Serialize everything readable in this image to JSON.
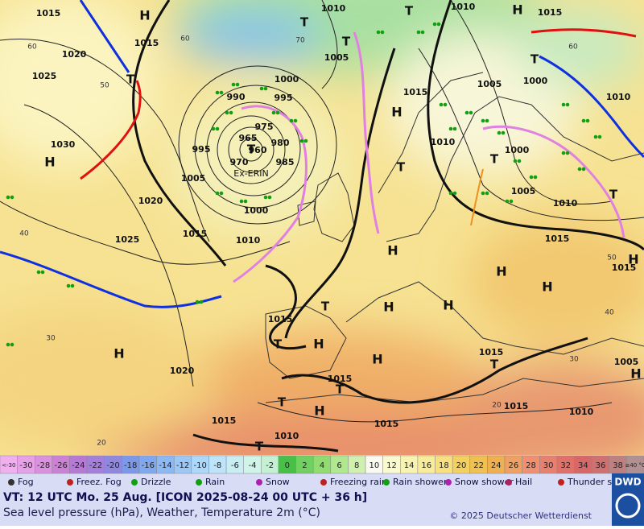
{
  "map": {
    "pressure_labels": [
      "1015",
      "1020",
      "1025",
      "1030",
      "1015",
      "1020",
      "1025",
      "1015",
      "1005",
      "995",
      "990",
      "975",
      "965",
      "960",
      "970",
      "985",
      "980",
      "995",
      "1000",
      "1000",
      "1010",
      "1010",
      "1005",
      "1010",
      "1015",
      "1005",
      "1000",
      "1010",
      "1015",
      "1010",
      "1000",
      "1005",
      "1010",
      "1015",
      "1015",
      "1015",
      "1015",
      "1020",
      "1015",
      "1010",
      "1015",
      "1015",
      "1015",
      "1010",
      "1005"
    ],
    "latitude_labels": [
      "60",
      "50",
      "40",
      "30",
      "20",
      "60",
      "70",
      "60",
      "50",
      "40",
      "30",
      "20"
    ],
    "high_labels": [
      "H",
      "H",
      "H",
      "H",
      "H",
      "H",
      "H",
      "H",
      "H",
      "H",
      "H",
      "H",
      "H",
      "H",
      "H"
    ],
    "low_labels": [
      "T",
      "T",
      "T",
      "T",
      "T",
      "T",
      "T",
      "T",
      "T",
      "T",
      "T",
      "T",
      "T",
      "T",
      "T"
    ],
    "storm_name": "Ex-ERIN"
  },
  "temperature_scale": {
    "labels": [
      "<-30",
      "-30",
      "-28",
      "-26",
      "-24",
      "-22",
      "-20",
      "-18",
      "-16",
      "-14",
      "-12",
      "-10",
      "-8",
      "-6",
      "-4",
      "-2",
      "0",
      "2",
      "4",
      "6",
      "8",
      "10",
      "12",
      "14",
      "16",
      "18",
      "20",
      "22",
      "24",
      "26",
      "28",
      "30",
      "32",
      "34",
      "36",
      "38",
      "≥40 °C"
    ]
  },
  "weather_legend": [
    "Fog",
    "Freez. Fog",
    "Drizzle",
    "Rain",
    "Snow",
    "Freezing rain",
    "Rain shower",
    "Snow shower",
    "Hail",
    "Thunder storm"
  ],
  "footer": {
    "valid_time": "VT: 12 UTC Mo.  25 Aug. [ICON 2025-08-24  00 UTC + 36 h]",
    "description": "Sea level pressure (hPa), Weather, Temperature 2m (°C)",
    "copyright": "© 2025 Deutscher Wetterdienst",
    "logo": "DWD"
  }
}
